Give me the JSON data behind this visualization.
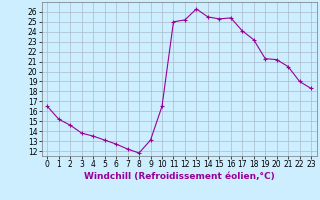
{
  "x": [
    0,
    1,
    2,
    3,
    4,
    5,
    6,
    7,
    8,
    9,
    10,
    11,
    12,
    13,
    14,
    15,
    16,
    17,
    18,
    19,
    20,
    21,
    22,
    23
  ],
  "y": [
    16.5,
    15.2,
    14.6,
    13.8,
    13.5,
    13.1,
    12.7,
    12.2,
    11.8,
    13.1,
    16.5,
    25.0,
    25.2,
    26.3,
    25.5,
    25.3,
    25.4,
    24.1,
    23.2,
    21.3,
    21.2,
    20.5,
    19.0,
    18.3
  ],
  "line_color": "#990099",
  "marker": "+",
  "marker_size": 3,
  "marker_lw": 0.8,
  "bg_color": "#cceeff",
  "grid_color": "#aabbcc",
  "xlabel": "Windchill (Refroidissement éolien,°C)",
  "xlabel_color": "#990099",
  "xlabel_fontsize": 6.5,
  "ylabel_ticks": [
    12,
    13,
    14,
    15,
    16,
    17,
    18,
    19,
    20,
    21,
    22,
    23,
    24,
    25,
    26
  ],
  "ylim": [
    11.5,
    27.0
  ],
  "xlim": [
    -0.5,
    23.5
  ],
  "tick_fontsize": 5.5,
  "line_width": 0.8
}
